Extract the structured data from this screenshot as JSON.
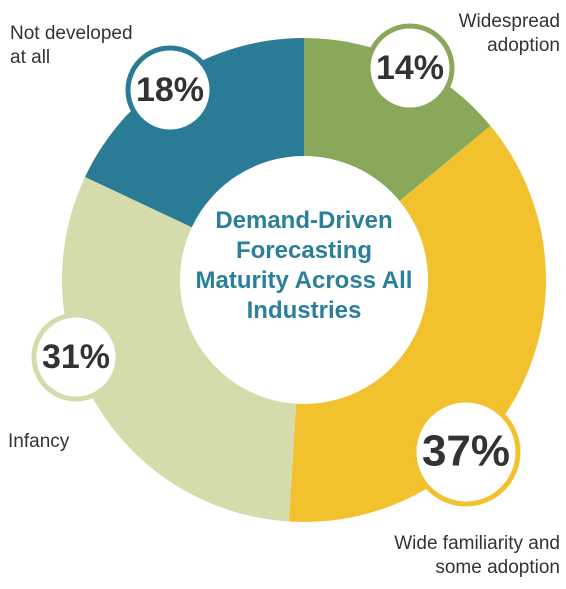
{
  "chart_data": {
    "type": "donut",
    "title": "Demand-Driven Forecasting Maturity Across All Industries",
    "categories": [
      "Widespread adoption",
      "Wide familiarity and some adoption",
      "Infancy",
      "Not developed at all"
    ],
    "values": [
      14,
      37,
      31,
      18
    ],
    "value_labels": [
      "14%",
      "37%",
      "31%",
      "18%"
    ],
    "colors": [
      "#8aa85a",
      "#f2c12e",
      "#d5dbaa",
      "#2a7b96"
    ]
  }
}
